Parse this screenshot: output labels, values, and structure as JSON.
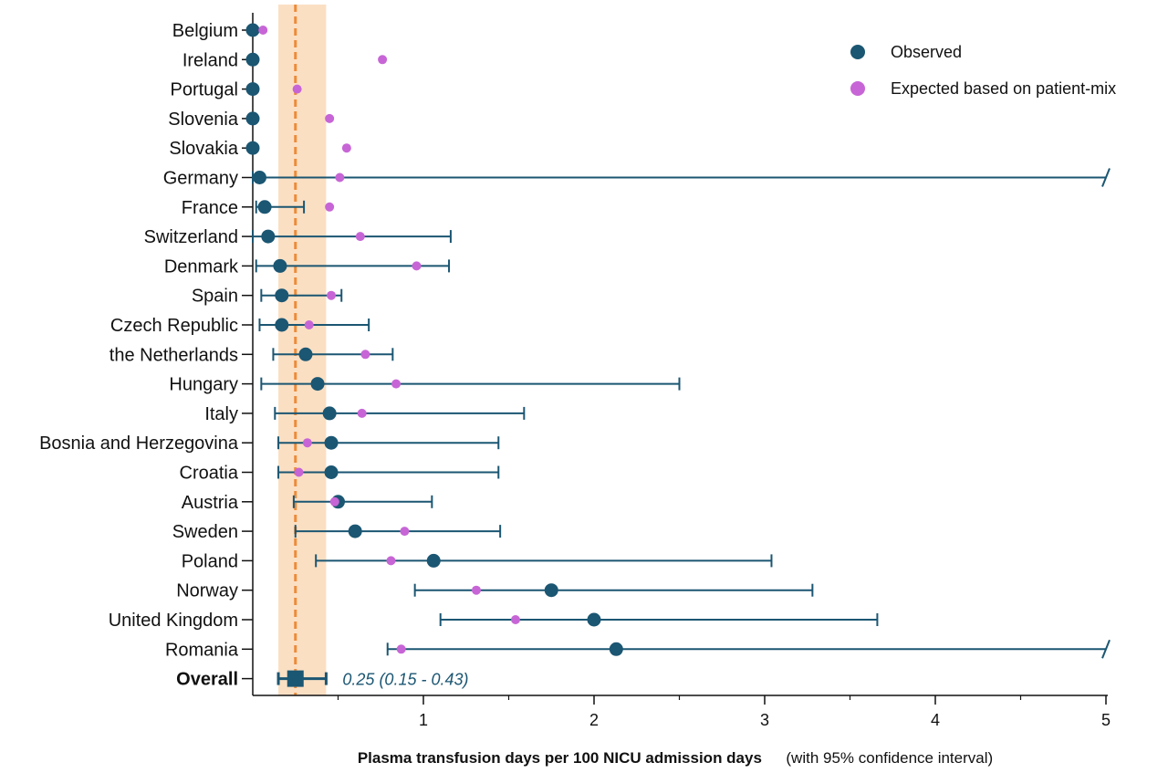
{
  "chart_data": {
    "type": "forest-plot",
    "xlabel": "Plasma transfusion days per 100 NICU admission days",
    "xlabel_note": "(with 95% confidence interval)",
    "xlim": [
      0,
      5
    ],
    "xticks": [
      1,
      2,
      3,
      4,
      5
    ],
    "axis_break_at": 5,
    "legend": {
      "placement": "top-right",
      "observed": "Observed",
      "expected": "Expected based on patient-mix"
    },
    "colors": {
      "observed": "#1b5672",
      "expected": "#c765d6",
      "reference_line": "#ec8c3a",
      "reference_band": "#fbdfc3"
    },
    "reference": {
      "value": 0.25,
      "ci_low": 0.15,
      "ci_high": 0.43
    },
    "rows": [
      {
        "country": "Belgium",
        "observed": 0.0,
        "expected": 0.06
      },
      {
        "country": "Ireland",
        "observed": 0.0,
        "expected": 0.76
      },
      {
        "country": "Portugal",
        "observed": 0.0,
        "expected": 0.26
      },
      {
        "country": "Slovenia",
        "observed": 0.0,
        "expected": 0.45
      },
      {
        "country": "Slovakia",
        "observed": 0.0,
        "expected": 0.55
      },
      {
        "country": "Germany",
        "observed": 0.04,
        "expected": 0.51,
        "ci_low": 0.0,
        "ci_high": 5.0,
        "truncated": true
      },
      {
        "country": "France",
        "observed": 0.07,
        "expected": 0.45,
        "ci_low": 0.02,
        "ci_high": 0.3
      },
      {
        "country": "Switzerland",
        "observed": 0.09,
        "expected": 0.63,
        "ci_low": 0.0,
        "ci_high": 1.16
      },
      {
        "country": "Denmark",
        "observed": 0.16,
        "expected": 0.96,
        "ci_low": 0.02,
        "ci_high": 1.15
      },
      {
        "country": "Spain",
        "observed": 0.17,
        "expected": 0.46,
        "ci_low": 0.05,
        "ci_high": 0.52
      },
      {
        "country": "Czech Republic",
        "observed": 0.17,
        "expected": 0.33,
        "ci_low": 0.04,
        "ci_high": 0.68
      },
      {
        "country": "the Netherlands",
        "observed": 0.31,
        "expected": 0.66,
        "ci_low": 0.12,
        "ci_high": 0.82
      },
      {
        "country": "Hungary",
        "observed": 0.38,
        "expected": 0.84,
        "ci_low": 0.05,
        "ci_high": 2.5
      },
      {
        "country": "Italy",
        "observed": 0.45,
        "expected": 0.64,
        "ci_low": 0.13,
        "ci_high": 1.59
      },
      {
        "country": "Bosnia and Herzegovina",
        "observed": 0.46,
        "expected": 0.32,
        "ci_low": 0.15,
        "ci_high": 1.44
      },
      {
        "country": "Croatia",
        "observed": 0.46,
        "expected": 0.27,
        "ci_low": 0.15,
        "ci_high": 1.44
      },
      {
        "country": "Austria",
        "observed": 0.5,
        "expected": 0.48,
        "ci_low": 0.24,
        "ci_high": 1.05
      },
      {
        "country": "Sweden",
        "observed": 0.6,
        "expected": 0.89,
        "ci_low": 0.25,
        "ci_high": 1.45
      },
      {
        "country": "Poland",
        "observed": 1.06,
        "expected": 0.81,
        "ci_low": 0.37,
        "ci_high": 3.04
      },
      {
        "country": "Norway",
        "observed": 1.75,
        "expected": 1.31,
        "ci_low": 0.95,
        "ci_high": 3.28
      },
      {
        "country": "United Kingdom",
        "observed": 2.0,
        "expected": 1.54,
        "ci_low": 1.1,
        "ci_high": 3.66
      },
      {
        "country": "Romania",
        "observed": 2.13,
        "expected": 0.87,
        "ci_low": 0.79,
        "ci_high": 5.0,
        "truncated": true
      }
    ],
    "overall": {
      "label": "Overall",
      "value": 0.25,
      "ci_low": 0.15,
      "ci_high": 0.43,
      "text": "0.25 (0.15 - 0.43)"
    }
  }
}
